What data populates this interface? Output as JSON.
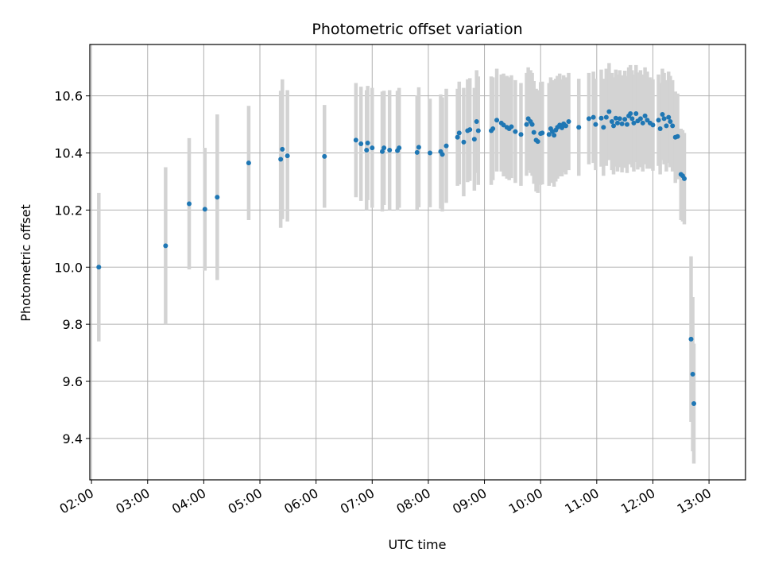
{
  "chart_data": {
    "type": "scatter",
    "title": "Photometric offset variation",
    "xlabel": "UTC time",
    "ylabel": "Photometric offset",
    "x_unit": "hours (UTC)",
    "xlim": [
      1.97,
      13.65
    ],
    "ylim": [
      9.255,
      10.78
    ],
    "grid": true,
    "x_ticks": [
      {
        "value": 2,
        "label": "02:00"
      },
      {
        "value": 3,
        "label": "03:00"
      },
      {
        "value": 4,
        "label": "04:00"
      },
      {
        "value": 5,
        "label": "05:00"
      },
      {
        "value": 6,
        "label": "06:00"
      },
      {
        "value": 7,
        "label": "07:00"
      },
      {
        "value": 8,
        "label": "08:00"
      },
      {
        "value": 9,
        "label": "09:00"
      },
      {
        "value": 10,
        "label": "10:00"
      },
      {
        "value": 11,
        "label": "11:00"
      },
      {
        "value": 12,
        "label": "12:00"
      },
      {
        "value": 13,
        "label": "13:00"
      }
    ],
    "y_ticks": [
      {
        "value": 9.4,
        "label": "9.4"
      },
      {
        "value": 9.6,
        "label": "9.6"
      },
      {
        "value": 9.8,
        "label": "9.8"
      },
      {
        "value": 10.0,
        "label": "10.0"
      },
      {
        "value": 10.2,
        "label": "10.2"
      },
      {
        "value": 10.4,
        "label": "10.4"
      },
      {
        "value": 10.6,
        "label": "10.6"
      }
    ],
    "colors": {
      "points": "#1f77b4",
      "errorbars": "#d3d3d3",
      "grid": "#b0b0b0"
    },
    "series": [
      {
        "points": [
          [
            2.13,
            10.0,
            0.26
          ],
          [
            3.32,
            10.075,
            0.275
          ],
          [
            3.74,
            10.222,
            0.23
          ],
          [
            4.02,
            10.203,
            0.215
          ],
          [
            4.24,
            10.245,
            0.29
          ],
          [
            4.8,
            10.365,
            0.2
          ],
          [
            5.37,
            10.378,
            0.24
          ],
          [
            5.4,
            10.413,
            0.245
          ],
          [
            5.49,
            10.39,
            0.23
          ],
          [
            6.15,
            10.388,
            0.18
          ],
          [
            6.71,
            10.445,
            0.2
          ],
          [
            6.8,
            10.432,
            0.2
          ],
          [
            6.9,
            10.41,
            0.21
          ],
          [
            6.92,
            10.435,
            0.2
          ],
          [
            7.0,
            10.418,
            0.21
          ],
          [
            7.18,
            10.405,
            0.21
          ],
          [
            7.21,
            10.418,
            0.2
          ],
          [
            7.31,
            10.41,
            0.21
          ],
          [
            7.45,
            10.408,
            0.21
          ],
          [
            7.48,
            10.418,
            0.21
          ],
          [
            7.8,
            10.402,
            0.2
          ],
          [
            7.83,
            10.42,
            0.21
          ],
          [
            8.03,
            10.4,
            0.19
          ],
          [
            8.22,
            10.405,
            0.2
          ],
          [
            8.25,
            10.395,
            0.2
          ],
          [
            8.32,
            10.425,
            0.2
          ],
          [
            8.52,
            10.455,
            0.17
          ],
          [
            8.55,
            10.47,
            0.18
          ],
          [
            8.63,
            10.438,
            0.19
          ],
          [
            8.7,
            10.478,
            0.18
          ],
          [
            8.74,
            10.482,
            0.18
          ],
          [
            8.82,
            10.448,
            0.18
          ],
          [
            8.86,
            10.51,
            0.18
          ],
          [
            8.89,
            10.478,
            0.19
          ],
          [
            9.12,
            10.478,
            0.19
          ],
          [
            9.15,
            10.485,
            0.18
          ],
          [
            9.22,
            10.515,
            0.18
          ],
          [
            9.3,
            10.505,
            0.17
          ],
          [
            9.34,
            10.498,
            0.18
          ],
          [
            9.4,
            10.49,
            0.18
          ],
          [
            9.44,
            10.485,
            0.18
          ],
          [
            9.48,
            10.492,
            0.18
          ],
          [
            9.55,
            10.475,
            0.18
          ],
          [
            9.65,
            10.465,
            0.18
          ],
          [
            9.75,
            10.5,
            0.18
          ],
          [
            9.78,
            10.52,
            0.18
          ],
          [
            9.82,
            10.51,
            0.18
          ],
          [
            9.85,
            10.5,
            0.18
          ],
          [
            9.88,
            10.472,
            0.18
          ],
          [
            9.92,
            10.445,
            0.18
          ],
          [
            9.95,
            10.44,
            0.18
          ],
          [
            10.0,
            10.468,
            0.18
          ],
          [
            10.03,
            10.47,
            0.18
          ],
          [
            10.15,
            10.465,
            0.18
          ],
          [
            10.18,
            10.485,
            0.18
          ],
          [
            10.21,
            10.475,
            0.18
          ],
          [
            10.24,
            10.462,
            0.18
          ],
          [
            10.27,
            10.48,
            0.18
          ],
          [
            10.3,
            10.49,
            0.18
          ],
          [
            10.34,
            10.498,
            0.18
          ],
          [
            10.38,
            10.488,
            0.17
          ],
          [
            10.41,
            10.502,
            0.17
          ],
          [
            10.45,
            10.495,
            0.17
          ],
          [
            10.5,
            10.51,
            0.17
          ],
          [
            10.68,
            10.49,
            0.17
          ],
          [
            10.86,
            10.52,
            0.16
          ],
          [
            10.94,
            10.525,
            0.16
          ],
          [
            10.98,
            10.5,
            0.16
          ],
          [
            11.08,
            10.522,
            0.17
          ],
          [
            11.12,
            10.49,
            0.17
          ],
          [
            11.17,
            10.525,
            0.17
          ],
          [
            11.22,
            10.545,
            0.17
          ],
          [
            11.27,
            10.51,
            0.17
          ],
          [
            11.3,
            10.495,
            0.17
          ],
          [
            11.34,
            10.522,
            0.17
          ],
          [
            11.37,
            10.505,
            0.17
          ],
          [
            11.41,
            10.52,
            0.17
          ],
          [
            11.45,
            10.502,
            0.17
          ],
          [
            11.5,
            10.518,
            0.17
          ],
          [
            11.54,
            10.5,
            0.17
          ],
          [
            11.57,
            10.53,
            0.17
          ],
          [
            11.6,
            10.538,
            0.17
          ],
          [
            11.63,
            10.52,
            0.17
          ],
          [
            11.66,
            10.505,
            0.17
          ],
          [
            11.7,
            10.538,
            0.17
          ],
          [
            11.73,
            10.512,
            0.17
          ],
          [
            11.78,
            10.52,
            0.17
          ],
          [
            11.82,
            10.505,
            0.17
          ],
          [
            11.86,
            10.53,
            0.17
          ],
          [
            11.9,
            10.515,
            0.17
          ],
          [
            11.95,
            10.505,
            0.16
          ],
          [
            12.0,
            10.498,
            0.16
          ],
          [
            12.1,
            10.515,
            0.16
          ],
          [
            12.13,
            10.485,
            0.16
          ],
          [
            12.17,
            10.535,
            0.16
          ],
          [
            12.2,
            10.52,
            0.16
          ],
          [
            12.24,
            10.495,
            0.16
          ],
          [
            12.28,
            10.525,
            0.16
          ],
          [
            12.31,
            10.51,
            0.16
          ],
          [
            12.35,
            10.495,
            0.16
          ],
          [
            12.4,
            10.455,
            0.16
          ],
          [
            12.44,
            10.458,
            0.15
          ],
          [
            12.5,
            10.325,
            0.16
          ],
          [
            12.53,
            10.32,
            0.16
          ],
          [
            12.56,
            10.31,
            0.16
          ],
          [
            12.68,
            9.748,
            0.29
          ],
          [
            12.71,
            9.625,
            0.27
          ],
          [
            12.73,
            9.522,
            0.21
          ]
        ]
      }
    ]
  }
}
